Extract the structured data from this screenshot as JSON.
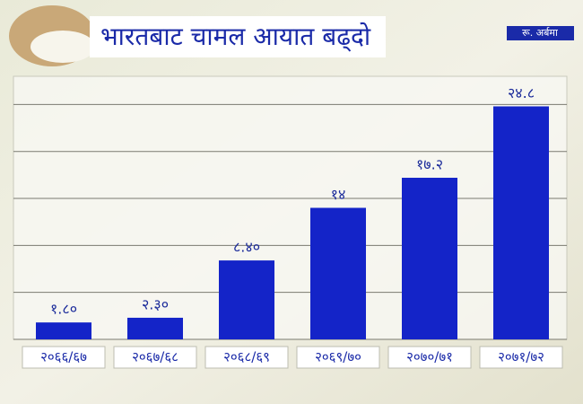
{
  "chart_data": {
    "type": "bar",
    "title": "भारतबाट चामल आयात बढ्दो",
    "subtitle": "रू. अर्बमा",
    "categories": [
      "२०६६/६७",
      "२०६७/६८",
      "२०६८/६९",
      "२०६९/७०",
      "२०७०/७१",
      "२०७१/७२"
    ],
    "values": [
      1.8,
      2.3,
      8.4,
      14,
      17.2,
      24.8
    ],
    "value_labels": [
      "१.८०",
      "२.३०",
      "८.४०",
      "१४",
      "१७.२",
      "२४.८"
    ],
    "color": "#1424c8",
    "ylim": [
      0,
      28
    ],
    "yticks": [
      0,
      5,
      10,
      15,
      20,
      25
    ],
    "grid": true
  }
}
